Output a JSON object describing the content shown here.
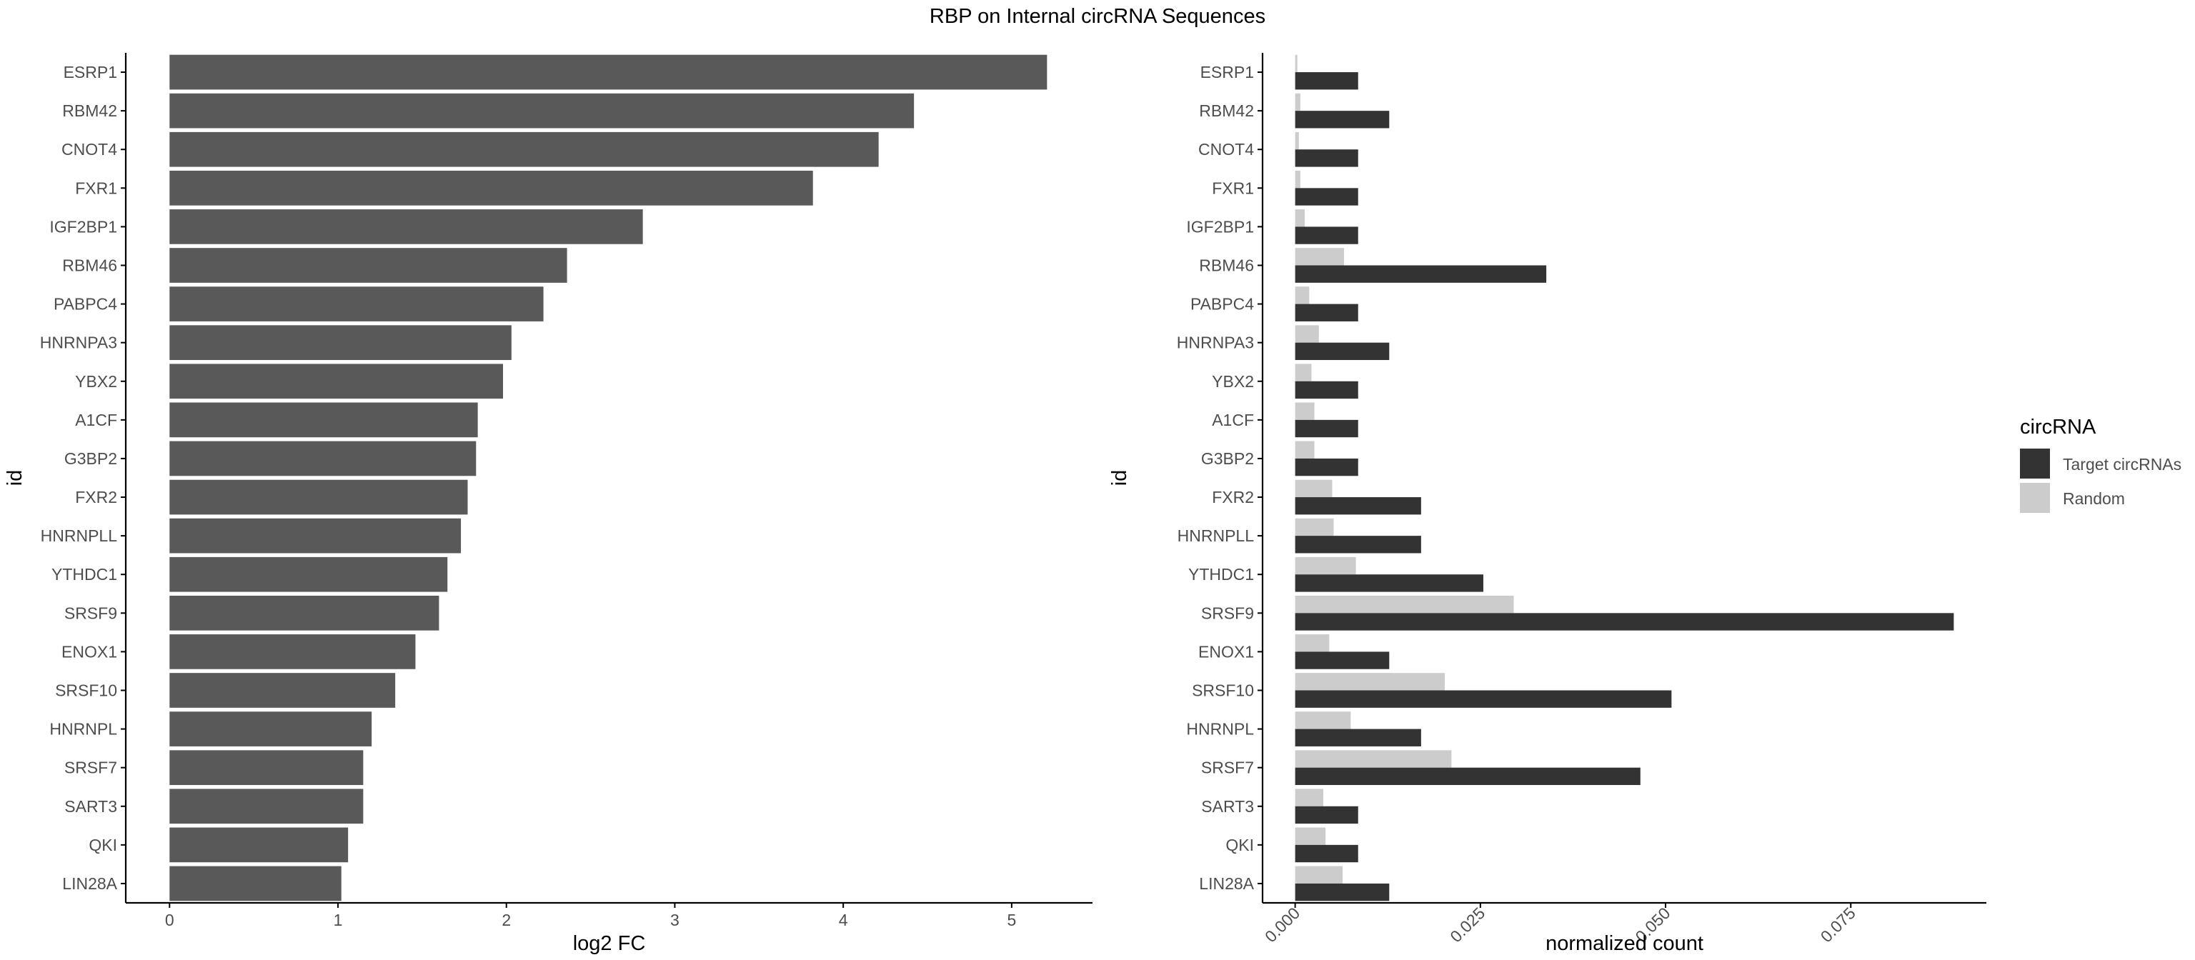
{
  "title": "RBP on Internal circRNA Sequences",
  "colors": {
    "single": "#595959",
    "target": "#333333",
    "random": "#cccccc",
    "axis": "#000000",
    "tick_text": "#4d4d4d"
  },
  "chart_data": [
    {
      "type": "bar",
      "orientation": "horizontal",
      "categories": [
        "ESRP1",
        "RBM42",
        "CNOT4",
        "FXR1",
        "IGF2BP1",
        "RBM46",
        "PABPC4",
        "HNRNPA3",
        "YBX2",
        "A1CF",
        "G3BP2",
        "FXR2",
        "HNRNPLL",
        "YTHDC1",
        "SRSF9",
        "ENOX1",
        "SRSF10",
        "HNRNPL",
        "SRSF7",
        "SART3",
        "QKI",
        "LIN28A"
      ],
      "values": [
        5.21,
        4.42,
        4.21,
        3.82,
        2.81,
        2.36,
        2.22,
        2.03,
        1.98,
        1.83,
        1.82,
        1.77,
        1.73,
        1.65,
        1.6,
        1.46,
        1.34,
        1.2,
        1.15,
        1.15,
        1.06,
        1.02
      ],
      "xlabel": "log2 FC",
      "ylabel": "id",
      "xlim": [
        -0.26,
        5.48
      ],
      "xticks": [
        0,
        1,
        2,
        3,
        4,
        5
      ],
      "xtick_labels": [
        "0",
        "1",
        "2",
        "3",
        "4",
        "5"
      ],
      "grid": false
    },
    {
      "type": "bar",
      "orientation": "horizontal",
      "dodge": true,
      "categories": [
        "ESRP1",
        "RBM42",
        "CNOT4",
        "FXR1",
        "IGF2BP1",
        "RBM46",
        "PABPC4",
        "HNRNPA3",
        "YBX2",
        "A1CF",
        "G3BP2",
        "FXR2",
        "HNRNPLL",
        "YTHDC1",
        "SRSF9",
        "ENOX1",
        "SRSF10",
        "HNRNPL",
        "SRSF7",
        "SART3",
        "QKI",
        "LIN28A"
      ],
      "series": [
        {
          "name": "Target circRNAs",
          "color": "#333333",
          "values": [
            0.0085,
            0.0127,
            0.0085,
            0.0085,
            0.0085,
            0.0339,
            0.0085,
            0.0127,
            0.0085,
            0.0085,
            0.0085,
            0.017,
            0.017,
            0.0254,
            0.0889,
            0.0127,
            0.0508,
            0.017,
            0.0466,
            0.0085,
            0.0085,
            0.0127
          ]
        },
        {
          "name": "Random",
          "color": "#cccccc",
          "values": [
            0.0003,
            0.0007,
            0.0005,
            0.0007,
            0.0013,
            0.0066,
            0.0019,
            0.0032,
            0.0022,
            0.0026,
            0.0026,
            0.005,
            0.0052,
            0.0082,
            0.0295,
            0.0046,
            0.0202,
            0.0075,
            0.0211,
            0.0038,
            0.0041,
            0.0064
          ]
        }
      ],
      "xlabel": "normalized count",
      "ylabel": "id",
      "xlim": [
        -0.0044,
        0.0933
      ],
      "xticks": [
        0,
        0.025,
        0.05,
        0.075
      ],
      "xtick_labels": [
        "0.000",
        "0.025",
        "0.050",
        "0.075"
      ],
      "grid": false,
      "legend": {
        "title": "circRNA",
        "placement": "right",
        "entries": [
          "Target circRNAs",
          "Random"
        ]
      }
    }
  ]
}
